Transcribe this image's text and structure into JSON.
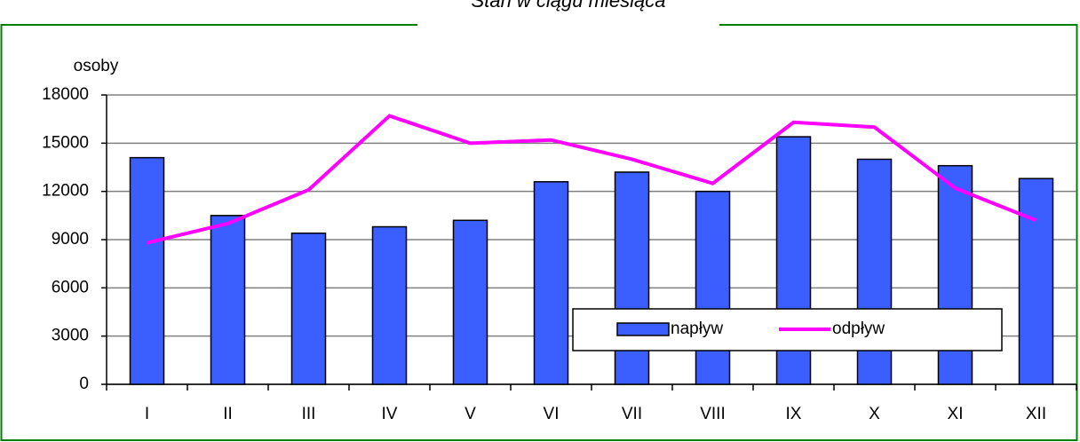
{
  "chart_data": {
    "type": "bar",
    "title": "Stan w ciągu miesiąca",
    "y_label": "osoby",
    "categories": [
      "I",
      "II",
      "III",
      "IV",
      "V",
      "VI",
      "VII",
      "VIII",
      "IX",
      "X",
      "XI",
      "XII"
    ],
    "series": [
      {
        "name": "napływ",
        "type": "bar",
        "color": "#3a5eff",
        "values": [
          14100,
          10500,
          9400,
          9800,
          10200,
          12600,
          13200,
          12000,
          15400,
          14000,
          13600,
          12800
        ]
      },
      {
        "name": "odpływ",
        "type": "line",
        "color": "#ff00ff",
        "values": [
          8800,
          10000,
          12100,
          16700,
          15000,
          15200,
          14000,
          12500,
          16300,
          16000,
          12200,
          10200
        ]
      }
    ],
    "ylim": [
      0,
      18000
    ],
    "yticks": [
      0,
      3000,
      6000,
      9000,
      12000,
      15000,
      18000
    ],
    "grid": true
  }
}
